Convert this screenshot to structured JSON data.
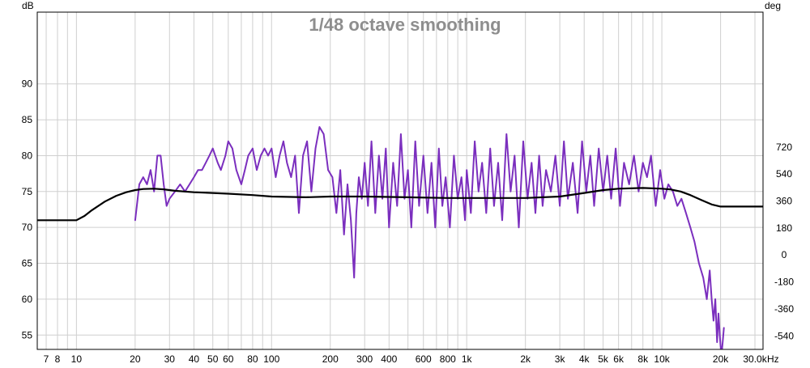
{
  "chart_data": {
    "type": "line",
    "title": "1/48 octave smoothing",
    "ylabel_left": "dB",
    "ylabel_right": "deg",
    "xunit": "Hz",
    "xscale": "log",
    "xlim": [
      6.3,
      33000
    ],
    "ylim": [
      53,
      100
    ],
    "ylim_right": [
      -630,
      1620
    ],
    "grid": true,
    "x_ticks": [
      {
        "value": 7,
        "label": "7"
      },
      {
        "value": 8,
        "label": "8"
      },
      {
        "value": 10,
        "label": "10"
      },
      {
        "value": 20,
        "label": "20"
      },
      {
        "value": 30,
        "label": "30"
      },
      {
        "value": 40,
        "label": "40"
      },
      {
        "value": 50,
        "label": "50"
      },
      {
        "value": 60,
        "label": "60"
      },
      {
        "value": 80,
        "label": "80"
      },
      {
        "value": 100,
        "label": "100"
      },
      {
        "value": 200,
        "label": "200"
      },
      {
        "value": 300,
        "label": "300"
      },
      {
        "value": 400,
        "label": "400"
      },
      {
        "value": 600,
        "label": "600"
      },
      {
        "value": 800,
        "label": "800"
      },
      {
        "value": 1000,
        "label": "1k"
      },
      {
        "value": 2000,
        "label": "2k"
      },
      {
        "value": 3000,
        "label": "3k"
      },
      {
        "value": 4000,
        "label": "4k"
      },
      {
        "value": 5000,
        "label": "5k"
      },
      {
        "value": 6000,
        "label": "6k"
      },
      {
        "value": 8000,
        "label": "8k"
      },
      {
        "value": 10000,
        "label": "10k"
      },
      {
        "value": 20000,
        "label": "20k"
      },
      {
        "value": 30000,
        "label": "30.0k"
      }
    ],
    "x_minor_grid": [
      7,
      8,
      9,
      10,
      20,
      30,
      40,
      50,
      60,
      70,
      80,
      90,
      100,
      200,
      300,
      400,
      500,
      600,
      700,
      800,
      900,
      1000,
      2000,
      3000,
      4000,
      5000,
      6000,
      7000,
      8000,
      9000,
      10000,
      20000,
      30000
    ],
    "y_ticks_left": [
      55,
      60,
      65,
      70,
      75,
      80,
      85,
      90
    ],
    "y_ticks_right": [
      -540,
      -360,
      -180,
      0,
      180,
      360,
      540,
      720
    ],
    "series": [
      {
        "color": "#7b2fbe",
        "x": [
          20,
          21,
          22,
          23,
          24,
          25,
          26,
          27,
          28,
          29,
          30,
          32,
          34,
          36,
          38,
          40,
          42,
          44,
          46,
          48,
          50,
          53,
          55,
          58,
          60,
          63,
          66,
          70,
          73,
          76,
          80,
          84,
          88,
          92,
          96,
          100,
          105,
          110,
          115,
          120,
          126,
          132,
          138,
          145,
          152,
          160,
          168,
          176,
          185,
          195,
          205,
          215,
          225,
          235,
          245,
          255,
          265,
          272,
          280,
          290,
          300,
          312,
          325,
          340,
          355,
          370,
          385,
          400,
          420,
          440,
          460,
          480,
          500,
          520,
          545,
          570,
          600,
          630,
          660,
          690,
          720,
          750,
          780,
          820,
          860,
          900,
          940,
          980,
          1000,
          1050,
          1100,
          1150,
          1200,
          1260,
          1320,
          1380,
          1450,
          1520,
          1600,
          1680,
          1760,
          1850,
          1950,
          2050,
          2150,
          2250,
          2350,
          2450,
          2550,
          2700,
          2850,
          3000,
          3150,
          3300,
          3500,
          3700,
          3900,
          4100,
          4300,
          4500,
          4750,
          5000,
          5250,
          5500,
          5800,
          6100,
          6400,
          6800,
          7200,
          7600,
          8000,
          8400,
          8800,
          9300,
          9800,
          10300,
          10800,
          11400,
          12000,
          12600,
          13300,
          14000,
          14700,
          15500,
          16300,
          17000,
          17600,
          18000,
          18400,
          18800,
          19200,
          19500,
          19800,
          20200,
          20500,
          20800
        ],
        "y": [
          71,
          76,
          77,
          76,
          78,
          75,
          80,
          80,
          76,
          73,
          74,
          75,
          76,
          75,
          76,
          77,
          78,
          78,
          79,
          80,
          81,
          79,
          78,
          80,
          82,
          81,
          78,
          76,
          78,
          80,
          81,
          78,
          80,
          81,
          80,
          81,
          77,
          80,
          82,
          79,
          77,
          80,
          72,
          80,
          82,
          75,
          81,
          84,
          83,
          78,
          77,
          72,
          78,
          69,
          76,
          71,
          63,
          72,
          77,
          74,
          79,
          73,
          82,
          72,
          80,
          74,
          81,
          70,
          79,
          73,
          83,
          74,
          78,
          70,
          82,
          73,
          80,
          72,
          79,
          70,
          81,
          73,
          77,
          70,
          80,
          74,
          77,
          71,
          78,
          72,
          82,
          75,
          79,
          72,
          81,
          73,
          79,
          71,
          83,
          75,
          80,
          70,
          82,
          74,
          79,
          72,
          80,
          73,
          78,
          75,
          80,
          73,
          82,
          74,
          79,
          72,
          82,
          75,
          80,
          73,
          81,
          75,
          80,
          74,
          81,
          73,
          79,
          76,
          80,
          75,
          79,
          77,
          80,
          73,
          78,
          74,
          76,
          75,
          73,
          74,
          72,
          70,
          68,
          65,
          63,
          60,
          64,
          60,
          57,
          60,
          54,
          58,
          55,
          52,
          54,
          56
        ]
      },
      {
        "color": "#000000",
        "x": [
          6.3,
          10,
          11,
          12,
          14,
          16,
          18,
          20,
          22,
          25,
          28,
          32,
          40,
          50,
          60,
          80,
          100,
          150,
          200,
          300,
          500,
          800,
          1000,
          2000,
          3000,
          4000,
          5000,
          6000,
          8000,
          10000,
          11000,
          12500,
          14000,
          16000,
          18000,
          20000,
          33000
        ],
        "y": [
          71,
          71,
          71.6,
          72.4,
          73.6,
          74.4,
          74.9,
          75.2,
          75.35,
          75.4,
          75.3,
          75.1,
          74.9,
          74.8,
          74.7,
          74.5,
          74.3,
          74.2,
          74.3,
          74.3,
          74.2,
          74.1,
          74.1,
          74.1,
          74.3,
          74.8,
          75.2,
          75.4,
          75.5,
          75.4,
          75.3,
          75.0,
          74.5,
          73.8,
          73.2,
          72.9,
          72.9
        ]
      }
    ]
  }
}
